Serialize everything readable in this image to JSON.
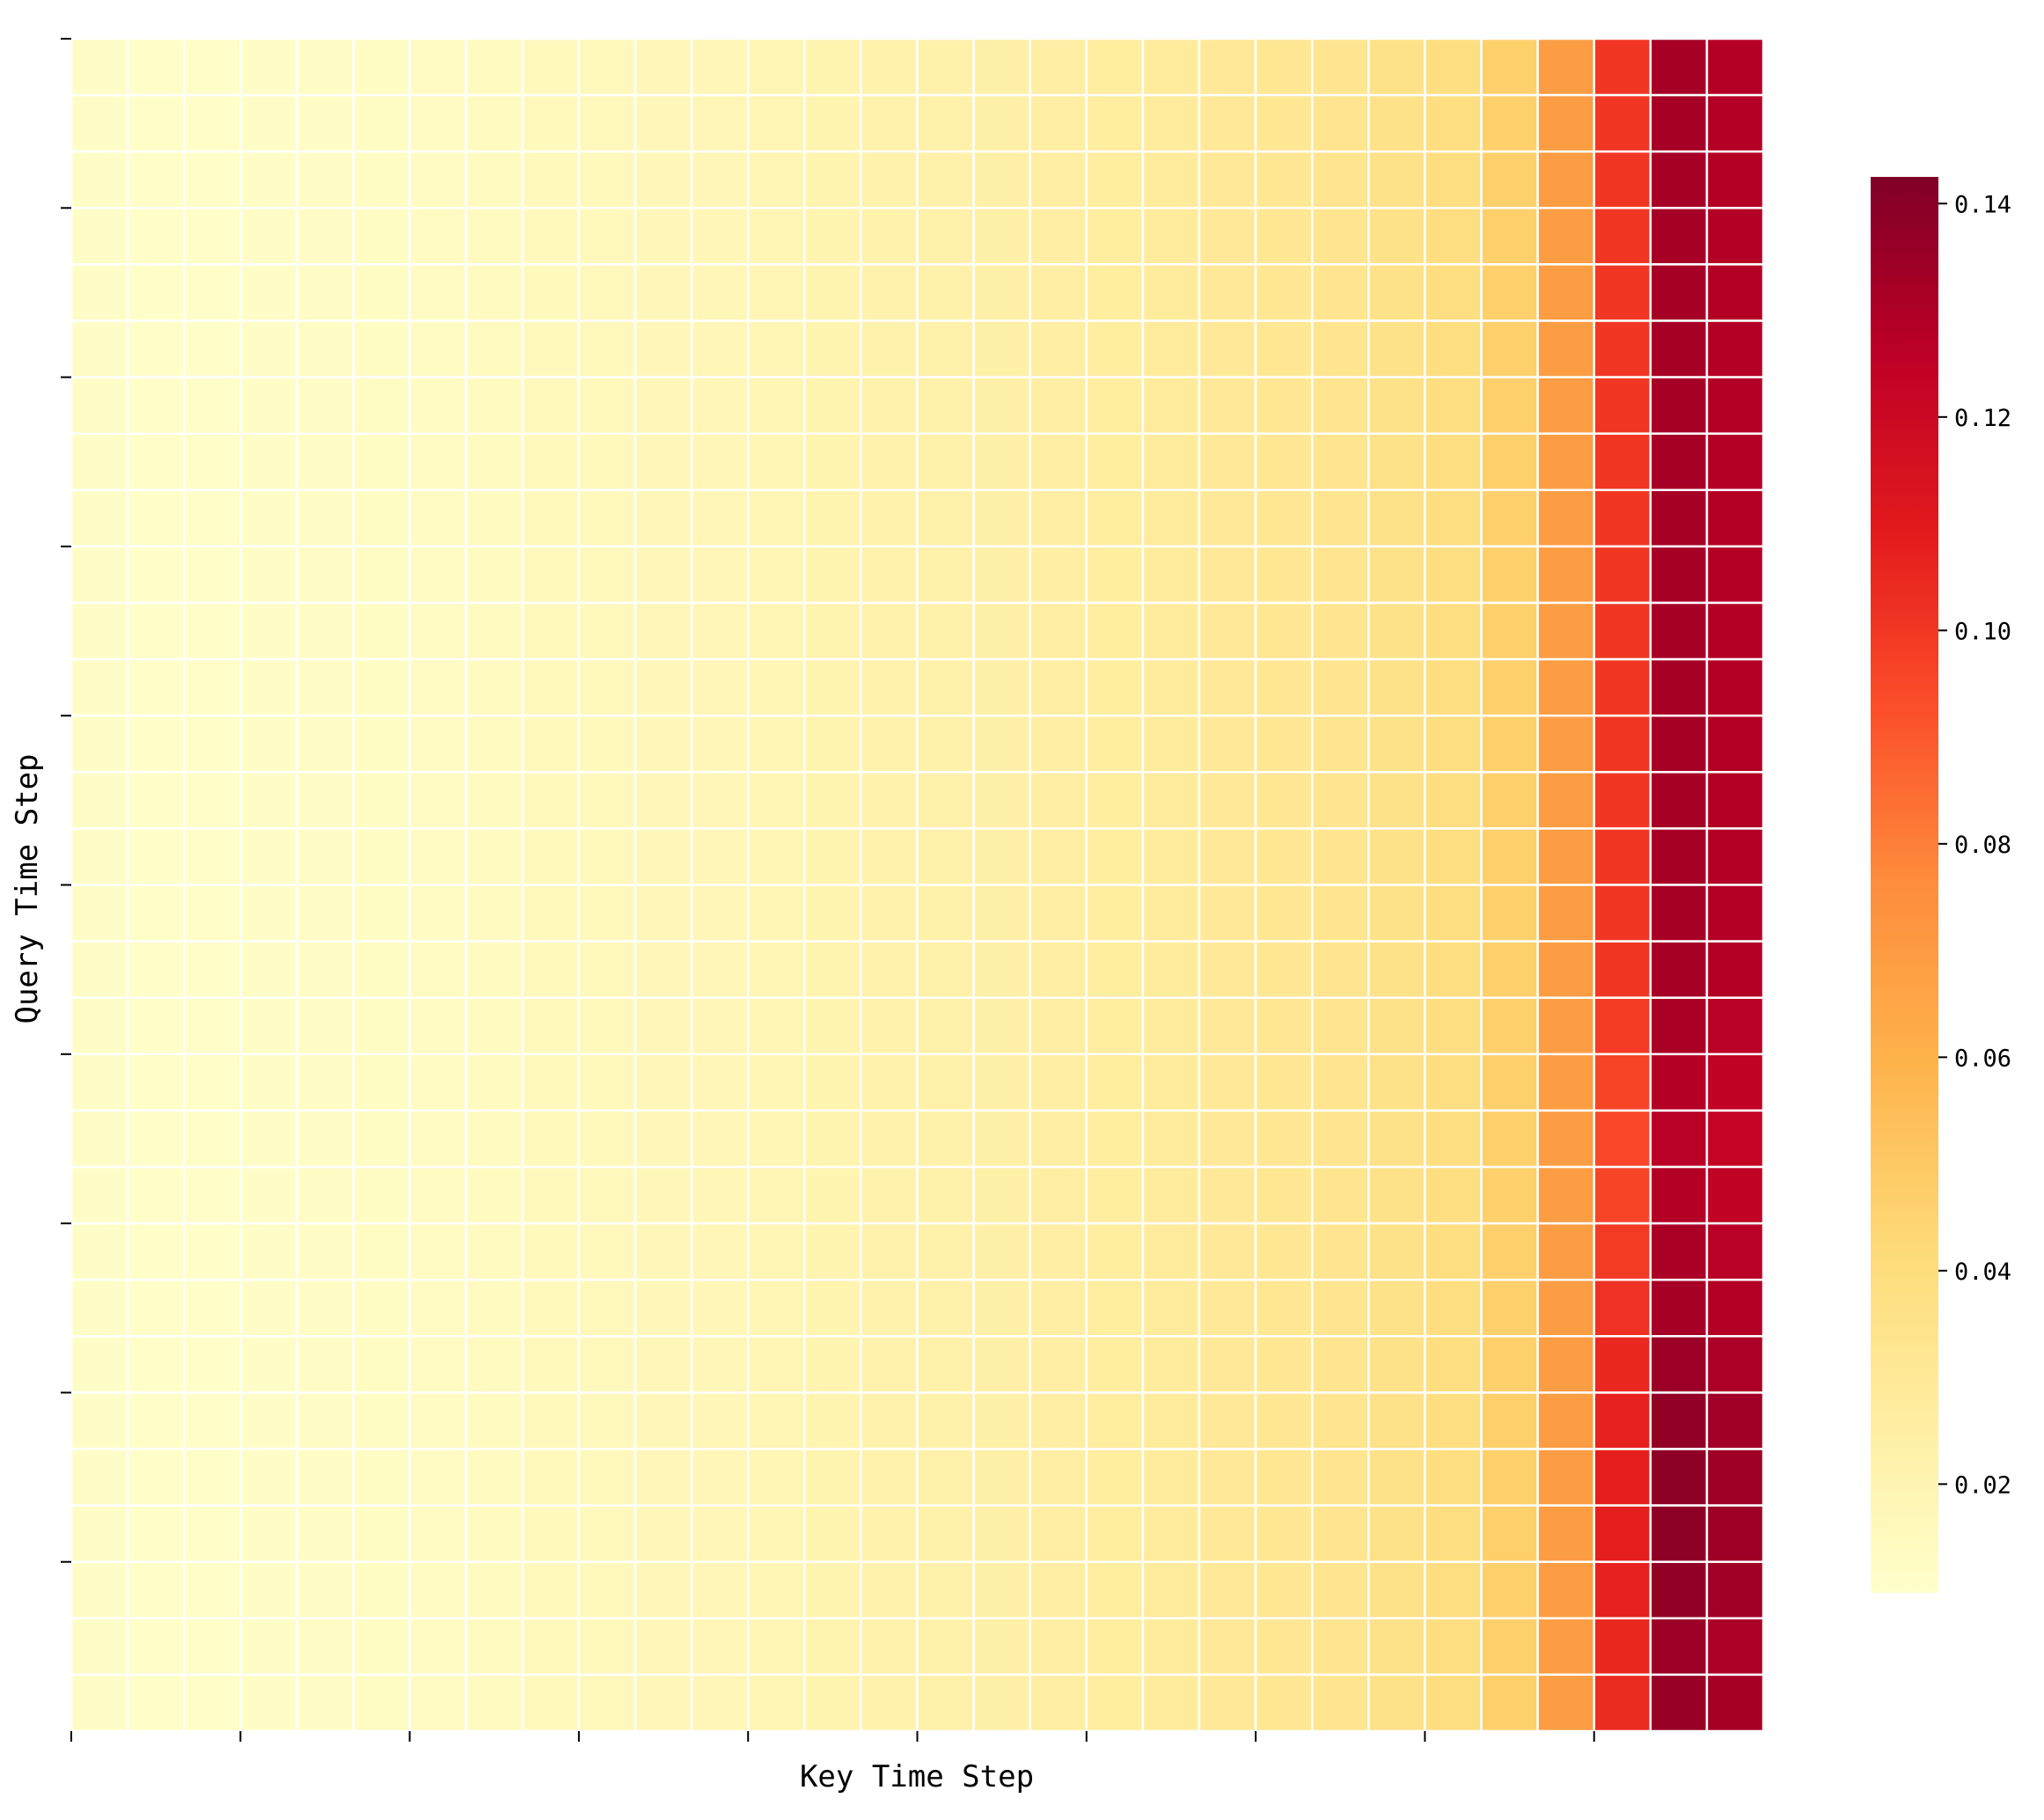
{
  "chart_data": {
    "type": "heatmap",
    "title": "",
    "xlabel": "Key Time Step",
    "ylabel": "Query Time Step",
    "n_rows": 30,
    "n_cols": 30,
    "col_profile": [
      0.0115,
      0.0108,
      0.0112,
      0.0118,
      0.0124,
      0.013,
      0.0136,
      0.0142,
      0.015,
      0.0158,
      0.0168,
      0.0178,
      0.019,
      0.0202,
      0.0214,
      0.0226,
      0.0238,
      0.0252,
      0.0265,
      0.028,
      0.0295,
      0.031,
      0.033,
      0.0355,
      0.039,
      0.047,
      0.069,
      0.1,
      0.132,
      0.128
    ],
    "row_variation": {
      "note": "",
      "last_col_scale_by_row": [
        1.0,
        1.0,
        1.0,
        1.0,
        1.0,
        1.0,
        1.0,
        1.0,
        1.0,
        1.0,
        1.0,
        1.0,
        1.0,
        1.0,
        1.0,
        1.0,
        1.0,
        0.99,
        0.97,
        0.96,
        0.97,
        0.99,
        1.0,
        1.02,
        1.04,
        1.05,
        1.05,
        1.04,
        1.02,
        1.03
      ],
      "red_col_scale_by_row": [
        1.0,
        1.0,
        1.0,
        1.0,
        1.0,
        1.0,
        1.0,
        1.0,
        1.0,
        1.0,
        1.0,
        1.0,
        1.0,
        1.0,
        1.0,
        1.0,
        1.0,
        0.99,
        0.96,
        0.95,
        0.96,
        0.99,
        1.02,
        1.05,
        1.07,
        1.08,
        1.08,
        1.07,
        1.05,
        1.04
      ]
    },
    "colorbar": {
      "colormap": "YlOrRd",
      "vmin": 0.0098,
      "vmax": 0.1425,
      "ticks": [
        0.02,
        0.04,
        0.06,
        0.08,
        0.1,
        0.12,
        0.14
      ],
      "tick_labels": [
        "0.02",
        "0.04",
        "0.06",
        "0.08",
        "0.10",
        "0.12",
        "0.14"
      ]
    },
    "x_tick_count": 10,
    "y_tick_count": 10,
    "grid": true
  }
}
